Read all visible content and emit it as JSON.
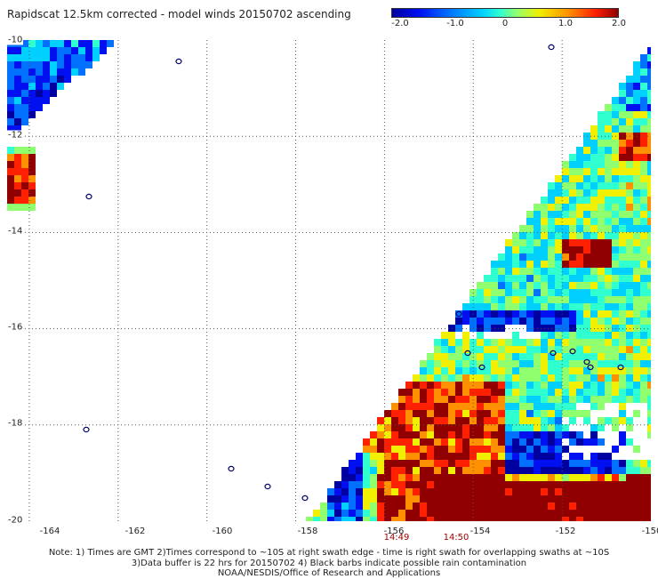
{
  "title": "Rapidscat 12.5km corrected - model winds 20150702 ascending",
  "colorbar": {
    "ticks": [
      "-2.0",
      "-1.0",
      "0",
      "1.0",
      "2.0"
    ],
    "range": [
      -2.0,
      2.0
    ],
    "colors": [
      "#0000a0",
      "#0010f0",
      "#0070ff",
      "#00d0ff",
      "#30ffcf",
      "#8fff70",
      "#f0f000",
      "#ff9000",
      "#ff2000",
      "#900000"
    ]
  },
  "axes": {
    "lon_range": [
      -165,
      -150
    ],
    "lat_range": [
      -20,
      -10
    ],
    "x_ticks": [
      "-164",
      "-162",
      "-160",
      "-158",
      "-156",
      "-154",
      "-152",
      "-150"
    ],
    "y_ticks": [
      "-10",
      "-12",
      "-14",
      "-16",
      "-18",
      "-20"
    ],
    "grid": "dotted"
  },
  "time_labels": [
    "14:49",
    "14:50"
  ],
  "notes": [
    "Note: 1) Times are GMT 2)Times correspond to ~10S at right swath edge - time is right swath for overlapping swaths at ~10S",
    "3)Data buffer is 22 hrs for 20150702 4) Black barbs indicate possible rain contamination",
    "NOAA/NESDIS/Office of Research and Applications"
  ]
}
